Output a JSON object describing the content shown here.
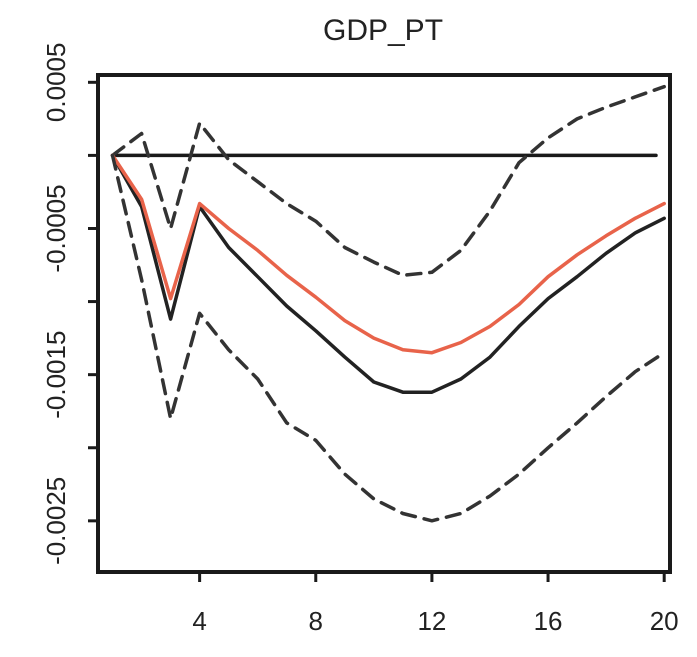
{
  "chart_data": {
    "type": "line",
    "title": "GDP_PT",
    "xlabel": "",
    "ylabel": "",
    "xlim": [
      0.5,
      20.2
    ],
    "ylim": [
      -0.00285,
      0.00055
    ],
    "x_ticks": [
      4,
      8,
      12,
      16,
      20
    ],
    "x_tick_labels": [
      "4",
      "8",
      "12",
      "16",
      "20"
    ],
    "y_ticks": [
      0.0005,
      0.0,
      -0.0005,
      -0.001,
      -0.0015,
      -0.002,
      -0.0025
    ],
    "y_tick_labels": [
      "0.0005",
      "",
      "-0.0005",
      "",
      "-0.0015",
      "",
      "-0.0025"
    ],
    "grid": false,
    "legend": "none",
    "x": [
      1,
      2,
      3,
      4,
      5,
      6,
      7,
      8,
      9,
      10,
      11,
      12,
      13,
      14,
      15,
      16,
      17,
      18,
      19,
      20
    ],
    "series": [
      {
        "role": "zero-line",
        "color": "#1a1a1a",
        "style": "solid",
        "values": [
          0,
          0,
          0,
          0,
          0,
          0,
          0,
          0,
          0,
          0,
          0,
          0,
          0,
          0,
          0,
          0,
          0,
          0,
          0,
          0
        ]
      },
      {
        "role": "upper-band",
        "color": "#333333",
        "style": "dashed",
        "values": [
          0.0,
          0.00015,
          -0.0005,
          0.00022,
          -3e-05,
          -0.00018,
          -0.00033,
          -0.00045,
          -0.00063,
          -0.00073,
          -0.00082,
          -0.0008,
          -0.00065,
          -0.00038,
          -5e-05,
          0.00012,
          0.00025,
          0.00033,
          0.0004,
          0.00047
        ]
      },
      {
        "role": "median",
        "color": "#222222",
        "style": "solid",
        "values": [
          0.0,
          -0.00035,
          -0.00112,
          -0.00035,
          -0.00063,
          -0.00083,
          -0.00103,
          -0.0012,
          -0.00138,
          -0.00155,
          -0.00162,
          -0.00162,
          -0.00153,
          -0.00138,
          -0.00117,
          -0.00098,
          -0.00083,
          -0.00067,
          -0.00053,
          -0.00043
        ]
      },
      {
        "role": "mean",
        "color": "#e8634a",
        "style": "solid",
        "values": [
          0.0,
          -0.0003,
          -0.00098,
          -0.00033,
          -0.0005,
          -0.00065,
          -0.00082,
          -0.00097,
          -0.00113,
          -0.00125,
          -0.00133,
          -0.00135,
          -0.00128,
          -0.00117,
          -0.00102,
          -0.00083,
          -0.00068,
          -0.00055,
          -0.00043,
          -0.00033
        ]
      },
      {
        "role": "lower-band",
        "color": "#333333",
        "style": "dashed",
        "values": [
          0.0,
          -0.00085,
          -0.0018,
          -0.00108,
          -0.00133,
          -0.00153,
          -0.00183,
          -0.00195,
          -0.00218,
          -0.00235,
          -0.00245,
          -0.0025,
          -0.00245,
          -0.00233,
          -0.00218,
          -0.002,
          -0.00183,
          -0.00165,
          -0.00148,
          -0.00135
        ]
      }
    ]
  }
}
